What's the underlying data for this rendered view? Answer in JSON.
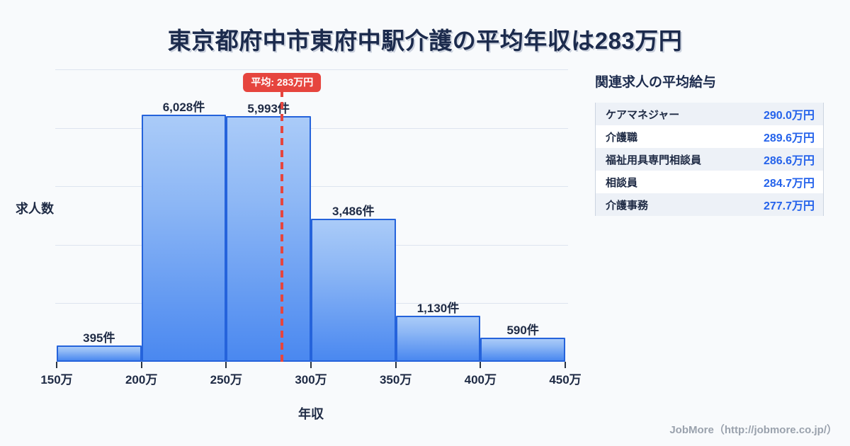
{
  "title": "東京都府中市東府中駅介護の平均年収は283万円",
  "chart_data": {
    "type": "bar",
    "title": "東京都府中市東府中駅介護の平均年収は283万円",
    "xlabel": "年収",
    "ylabel": "求人数",
    "bin_edges": [
      150,
      200,
      250,
      300,
      350,
      400,
      450
    ],
    "bin_edge_labels": [
      "150万",
      "200万",
      "250万",
      "300万",
      "350万",
      "400万",
      "450万"
    ],
    "values": [
      395,
      6028,
      5993,
      3486,
      1130,
      590
    ],
    "value_labels": [
      "395件",
      "6,028件",
      "5,993件",
      "3,486件",
      "1,130件",
      "590件"
    ],
    "average": {
      "value": 283,
      "label": "平均: 283万円"
    },
    "xlim": [
      150,
      450
    ],
    "ylim": [
      0,
      7100
    ],
    "grid": true,
    "legend": "none",
    "colors": {
      "bar_gradient_top": "#aacbf8",
      "bar_gradient_bottom": "#4a88f0",
      "bar_border": "#2563db",
      "average_red": "#e6453e",
      "text_navy": "#1f2b45",
      "gridline": "#dde4ef",
      "background": "#f8fafc"
    }
  },
  "side_panel": {
    "title": "関連求人の平均給与",
    "rows": [
      {
        "label": "ケアマネジャー",
        "value": "290.0万円"
      },
      {
        "label": "介護職",
        "value": "289.6万円"
      },
      {
        "label": "福祉用具専門相談員",
        "value": "286.6万円"
      },
      {
        "label": "相談員",
        "value": "284.7万円"
      },
      {
        "label": "介護事務",
        "value": "277.7万円"
      }
    ]
  },
  "footer": {
    "credit": "JobMore（http://jobmore.co.jp/）"
  }
}
